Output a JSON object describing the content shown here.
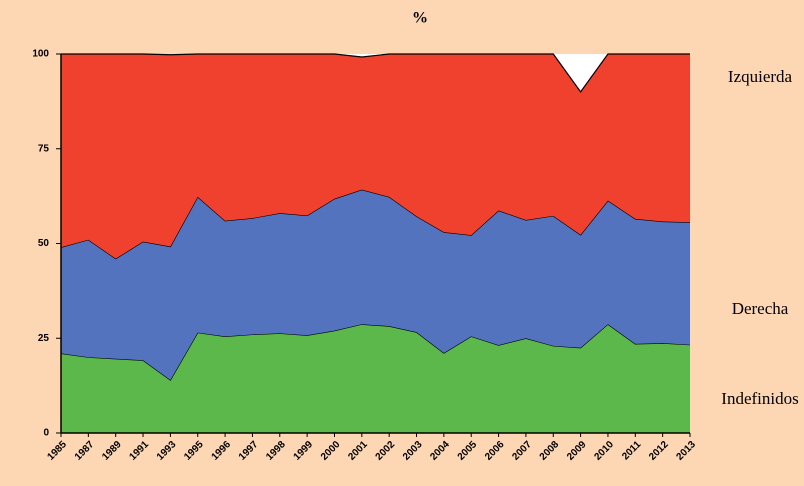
{
  "chart_data": {
    "type": "stacked-area",
    "title": "%",
    "categories": [
      "1985",
      "1987",
      "1989",
      "1991",
      "1993",
      "1995",
      "1996",
      "1997",
      "1998",
      "1999",
      "2000",
      "2001",
      "2002",
      "2003",
      "2004",
      "2005",
      "2006",
      "2007",
      "2008",
      "2009",
      "2010",
      "2011",
      "2012",
      "2013"
    ],
    "series": [
      {
        "name": "Indefinidos",
        "color": "#5cb84b",
        "values": [
          21,
          20,
          19.6,
          19.2,
          14,
          26.5,
          25.5,
          26,
          26.3,
          25.8,
          27,
          28.7,
          28.2,
          26.6,
          21.1,
          25.5,
          23.2,
          25,
          23,
          22.5,
          28.7,
          23.5,
          23.7,
          23.3
        ]
      },
      {
        "name": "Derecha",
        "color": "#5373bf",
        "values": [
          28,
          31,
          26.4,
          31.3,
          35.2,
          35.8,
          30.5,
          30.7,
          31.7,
          31.6,
          34.8,
          35.5,
          34.1,
          30.6,
          31.9,
          26.7,
          35.5,
          31.2,
          34.3,
          29.8,
          32.6,
          33,
          32.1,
          32.3
        ]
      },
      {
        "name": "Izquierda",
        "color": "#ef412d",
        "values": [
          51,
          49,
          54,
          49.5,
          50.6,
          37.7,
          44,
          43.3,
          42,
          42.6,
          38.2,
          35,
          37.7,
          42.8,
          47,
          47.8,
          41.3,
          43.8,
          42.7,
          37.7,
          38.7,
          43.5,
          44.2,
          44.4
        ]
      }
    ],
    "ylim": [
      0,
      100
    ],
    "yticks": [
      0,
      25,
      50,
      75,
      100
    ],
    "legend": "right"
  }
}
